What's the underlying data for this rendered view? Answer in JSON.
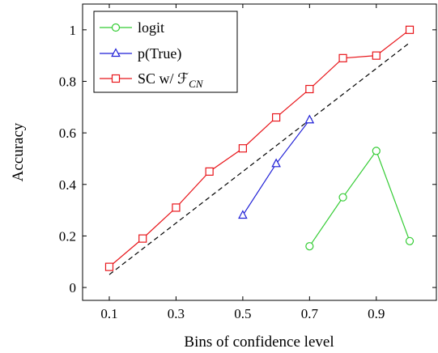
{
  "chart_data": {
    "type": "line",
    "title": "",
    "xlabel": "Bins of confidence level",
    "ylabel": "Accuracy",
    "xlim": [
      0.02,
      1.08
    ],
    "ylim": [
      -0.05,
      1.1
    ],
    "x_ticks": [
      0.1,
      0.3,
      0.5,
      0.7,
      0.9
    ],
    "x_tick_labels": [
      "0.1",
      "0.3",
      "0.5",
      "0.7",
      "0.9"
    ],
    "y_ticks": [
      0,
      0.2,
      0.4,
      0.6,
      0.8,
      1.0
    ],
    "y_tick_labels": [
      "0",
      "0.2",
      "0.4",
      "0.6",
      "0.8",
      "1"
    ],
    "grid": false,
    "legend_position": "top-left",
    "series": [
      {
        "name": "logit",
        "color": "#33cc33",
        "marker": "circle",
        "x": [
          0.7,
          0.8,
          0.9,
          1.0
        ],
        "y": [
          0.16,
          0.35,
          0.53,
          0.18
        ]
      },
      {
        "name": "p(True)",
        "color": "#1f1fd6",
        "marker": "triangle",
        "x": [
          0.5,
          0.6,
          0.7
        ],
        "y": [
          0.28,
          0.48,
          0.65
        ]
      },
      {
        "name": "SC w/ ℱ",
        "name_subscript": "CN",
        "color": "#e8161b",
        "marker": "square",
        "x": [
          0.1,
          0.2,
          0.3,
          0.4,
          0.5,
          0.6,
          0.7,
          0.8,
          0.9,
          1.0
        ],
        "y": [
          0.08,
          0.19,
          0.31,
          0.45,
          0.54,
          0.66,
          0.77,
          0.89,
          0.9,
          1.0
        ]
      }
    ],
    "reference_line": {
      "style": "dashed",
      "color": "#000000",
      "x": [
        0.1,
        1.0
      ],
      "y": [
        0.05,
        0.95
      ]
    }
  }
}
